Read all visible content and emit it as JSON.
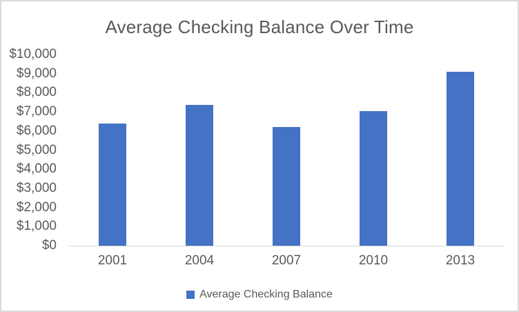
{
  "chart": {
    "title": "Average Checking Balance Over Time",
    "legend": {
      "label": "Average Checking Balance",
      "swatch_color": "#4472C4"
    }
  },
  "chart_data": {
    "type": "bar",
    "title": "Average Checking Balance Over Time",
    "categories": [
      "2001",
      "2004",
      "2007",
      "2010",
      "2013"
    ],
    "series": [
      {
        "name": "Average Checking Balance",
        "color": "#4472C4",
        "values": [
          6400,
          7350,
          6200,
          7050,
          9100
        ]
      }
    ],
    "xlabel": "",
    "ylabel": "",
    "ylim": [
      0,
      10000
    ],
    "ytick_interval": 1000,
    "ytick_labels": [
      "$0",
      "$1,000",
      "$2,000",
      "$3,000",
      "$4,000",
      "$5,000",
      "$6,000",
      "$7,000",
      "$8,000",
      "$9,000",
      "$10,000"
    ],
    "grid": false,
    "legend_position": "bottom"
  },
  "colors": {
    "bar": "#4472C4",
    "text": "#595959",
    "axis_line": "#D9D9D9",
    "chart_border": "#D9D9D9",
    "background": "#FFFFFF"
  }
}
